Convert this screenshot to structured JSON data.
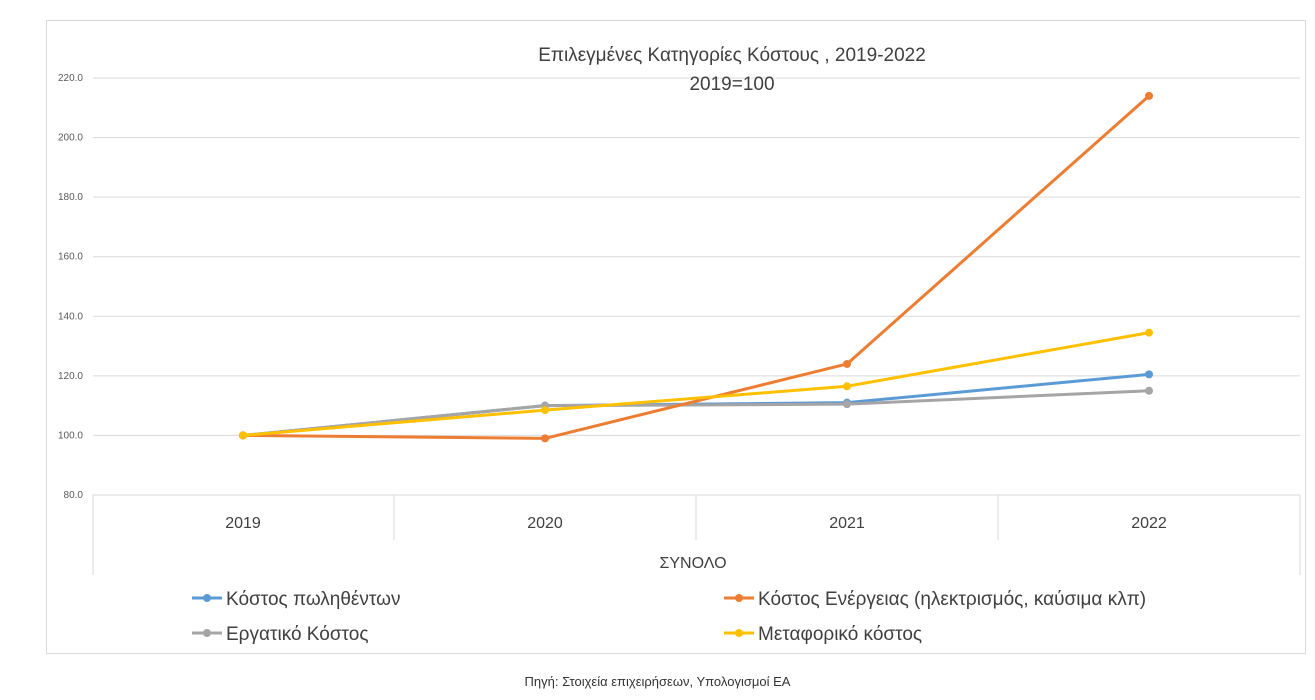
{
  "chart_data": {
    "type": "line",
    "title": "Επιλεγμένες Κατηγορίες Κόστους , 2019-2022",
    "subtitle": "2019=100",
    "xlabel": "ΣΥΝΟΛΟ",
    "ylabel": "",
    "categories": [
      "2019",
      "2020",
      "2021",
      "2022"
    ],
    "ylim": [
      80,
      220
    ],
    "yticks": [
      "80.0",
      "100.0",
      "120.0",
      "140.0",
      "160.0",
      "180.0",
      "200.0",
      "220.0"
    ],
    "grid": true,
    "legend_position": "bottom",
    "series": [
      {
        "name": "Κόστος πωληθέντων",
        "color": "#5b9bd5",
        "values": [
          100.0,
          110.0,
          111.0,
          120.5
        ]
      },
      {
        "name": "Κόστος Ενέργειας (ηλεκτρισμός, καύσιμα κλπ)",
        "color": "#ed7d31",
        "values": [
          100.0,
          99.0,
          124.0,
          214.0
        ]
      },
      {
        "name": "Εργατικό Κόστος",
        "color": "#a5a5a5",
        "values": [
          100.0,
          110.0,
          110.5,
          115.0
        ]
      },
      {
        "name": "Μεταφορικό κόστος",
        "color": "#ffc000",
        "values": [
          100.0,
          108.5,
          116.5,
          134.5
        ]
      }
    ]
  },
  "caption": "Πηγή: Στοιχεία επιχειρήσεων, Υπολογισμοί ΕΑ"
}
